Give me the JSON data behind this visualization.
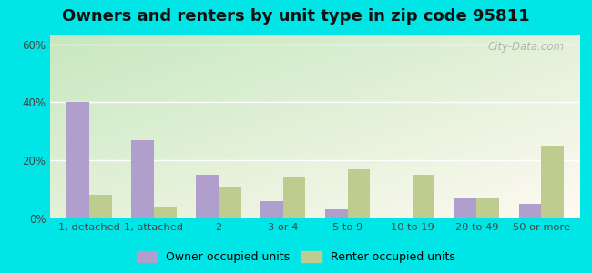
{
  "title": "Owners and renters by unit type in zip code 95811",
  "categories": [
    "1, detached",
    "1, attached",
    "2",
    "3 or 4",
    "5 to 9",
    "10 to 19",
    "20 to 49",
    "50 or more"
  ],
  "owner_values": [
    40,
    27,
    15,
    6,
    3,
    0,
    7,
    5
  ],
  "renter_values": [
    8,
    4,
    11,
    14,
    17,
    15,
    7,
    25
  ],
  "owner_color": "#b09fcc",
  "renter_color": "#bfcc8f",
  "background_outer": "#00e5e5",
  "ylabel_ticks": [
    "0%",
    "20%",
    "40%",
    "60%"
  ],
  "ytick_values": [
    0,
    20,
    40,
    60
  ],
  "ylim": [
    0,
    63
  ],
  "bar_width": 0.35,
  "title_fontsize": 13,
  "legend_owner": "Owner occupied units",
  "legend_renter": "Renter occupied units",
  "watermark": "City-Data.com"
}
